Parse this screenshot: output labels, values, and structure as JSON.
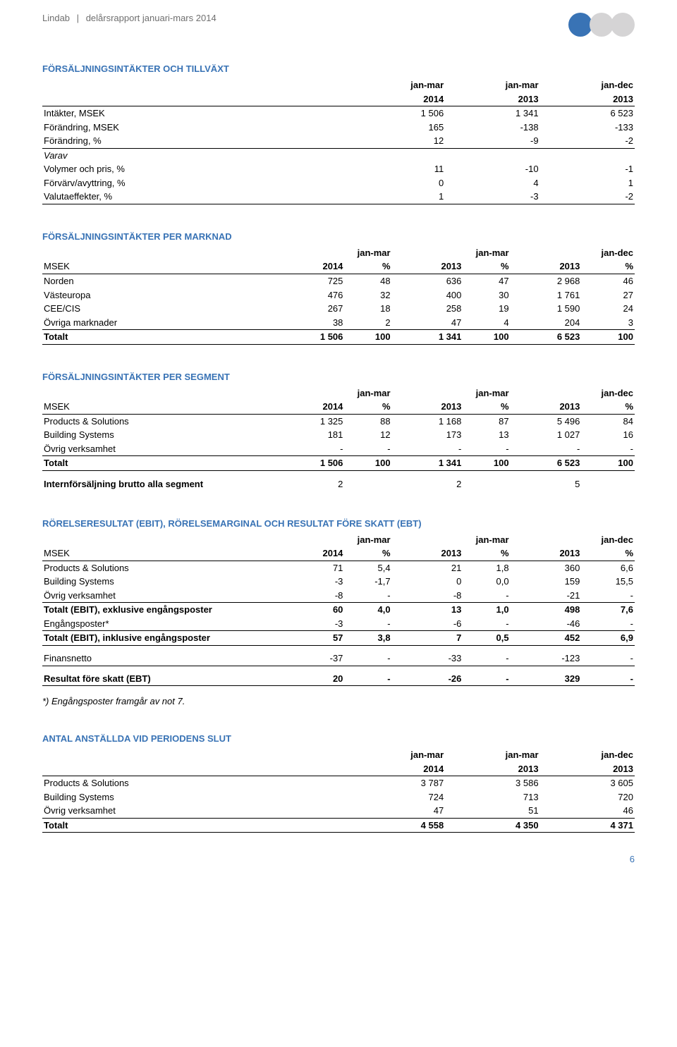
{
  "header": {
    "company": "Lindab",
    "report": "delårsrapport januari-mars 2014"
  },
  "dots": [
    "#3973b5",
    "#d5d4d5",
    "#d5d4d5"
  ],
  "page_number": "6",
  "t1": {
    "title": "FÖRSÄLJNINGSINTÄKTER OCH TILLVÄXT",
    "col_h1": [
      "jan-mar",
      "jan-mar",
      "jan-dec"
    ],
    "col_h2": [
      "2014",
      "2013",
      "2013"
    ],
    "rows": [
      {
        "label": "Intäkter, MSEK",
        "v": [
          "1 506",
          "1 341",
          "6 523"
        ]
      },
      {
        "label": "Förändring, MSEK",
        "v": [
          "165",
          "-138",
          "-133"
        ]
      },
      {
        "label": "Förändring, %",
        "v": [
          "12",
          "-9",
          "-2"
        ]
      }
    ],
    "varav_label": "Varav",
    "varav": [
      {
        "label": "Volymer och pris, %",
        "v": [
          "11",
          "-10",
          "-1"
        ]
      },
      {
        "label": "Förvärv/avyttring, %",
        "v": [
          "0",
          "4",
          "1"
        ]
      },
      {
        "label": "Valutaeffekter, %",
        "v": [
          "1",
          "-3",
          "-2"
        ]
      }
    ]
  },
  "t2": {
    "title": "FÖRSÄLJNINGSINTÄKTER PER MARKNAD",
    "col_h1": [
      "jan-mar",
      "jan-mar",
      "jan-dec"
    ],
    "row_label": "MSEK",
    "col_h2": [
      "2014",
      "%",
      "2013",
      "%",
      "2013",
      "%"
    ],
    "rows": [
      {
        "label": "Norden",
        "v": [
          "725",
          "48",
          "636",
          "47",
          "2 968",
          "46"
        ]
      },
      {
        "label": "Västeuropa",
        "v": [
          "476",
          "32",
          "400",
          "30",
          "1 761",
          "27"
        ]
      },
      {
        "label": "CEE/CIS",
        "v": [
          "267",
          "18",
          "258",
          "19",
          "1 590",
          "24"
        ]
      },
      {
        "label": "Övriga marknader",
        "v": [
          "38",
          "2",
          "47",
          "4",
          "204",
          "3"
        ]
      }
    ],
    "total": {
      "label": "Totalt",
      "v": [
        "1 506",
        "100",
        "1 341",
        "100",
        "6 523",
        "100"
      ]
    }
  },
  "t3": {
    "title": "FÖRSÄLJNINGSINTÄKTER PER SEGMENT",
    "col_h1": [
      "jan-mar",
      "jan-mar",
      "jan-dec"
    ],
    "row_label": "MSEK",
    "col_h2": [
      "2014",
      "%",
      "2013",
      "%",
      "2013",
      "%"
    ],
    "rows": [
      {
        "label": "Products & Solutions",
        "v": [
          "1 325",
          "88",
          "1 168",
          "87",
          "5 496",
          "84"
        ]
      },
      {
        "label": "Building Systems",
        "v": [
          "181",
          "12",
          "173",
          "13",
          "1 027",
          "16"
        ]
      },
      {
        "label": "Övrig verksamhet",
        "v": [
          "-",
          "-",
          "-",
          "-",
          "-",
          "-"
        ]
      }
    ],
    "total": {
      "label": "Totalt",
      "v": [
        "1 506",
        "100",
        "1 341",
        "100",
        "6 523",
        "100"
      ]
    },
    "intern": {
      "label": "Internförsäljning brutto alla segment",
      "v": [
        "2",
        "",
        "2",
        "",
        "5",
        ""
      ]
    }
  },
  "t4": {
    "title": "RÖRELSERESULTAT (EBIT), RÖRELSEMARGINAL OCH RESULTAT FÖRE SKATT (EBT)",
    "col_h1": [
      "jan-mar",
      "jan-mar",
      "jan-dec"
    ],
    "row_label": "MSEK",
    "col_h2": [
      "2014",
      "%",
      "2013",
      "%",
      "2013",
      "%"
    ],
    "rows": [
      {
        "label": "Products & Solutions",
        "v": [
          "71",
          "5,4",
          "21",
          "1,8",
          "360",
          "6,6"
        ]
      },
      {
        "label": "Building Systems",
        "v": [
          "-3",
          "-1,7",
          "0",
          "0,0",
          "159",
          "15,5"
        ]
      },
      {
        "label": "Övrig verksamhet",
        "v": [
          "-8",
          "-",
          "-8",
          "-",
          "-21",
          "-"
        ]
      }
    ],
    "sub1": {
      "label": "Totalt (EBIT), exklusive engångsposter",
      "v": [
        "60",
        "4,0",
        "13",
        "1,0",
        "498",
        "7,6"
      ]
    },
    "row_eng": {
      "label": "Engångsposter*",
      "v": [
        "-3",
        "-",
        "-6",
        "-",
        "-46",
        "-"
      ]
    },
    "sub2": {
      "label": "Totalt (EBIT), inklusive engångsposter",
      "v": [
        "57",
        "3,8",
        "7",
        "0,5",
        "452",
        "6,9"
      ]
    },
    "fin": {
      "label": "Finansnetto",
      "v": [
        "-37",
        "-",
        "-33",
        "-",
        "-123",
        "-"
      ]
    },
    "ebt": {
      "label": "Resultat före skatt (EBT)",
      "v": [
        "20",
        "-",
        "-26",
        "-",
        "329",
        "-"
      ]
    },
    "footnote": "*) Engångsposter framgår av not 7."
  },
  "t5": {
    "title": "ANTAL ANSTÄLLDA VID PERIODENS SLUT",
    "col_h1": [
      "jan-mar",
      "jan-mar",
      "jan-dec"
    ],
    "col_h2": [
      "2014",
      "2013",
      "2013"
    ],
    "rows": [
      {
        "label": "Products & Solutions",
        "v": [
          "3 787",
          "3 586",
          "3 605"
        ]
      },
      {
        "label": "Building Systems",
        "v": [
          "724",
          "713",
          "720"
        ]
      },
      {
        "label": "Övrig verksamhet",
        "v": [
          "47",
          "51",
          "46"
        ]
      }
    ],
    "total": {
      "label": "Totalt",
      "v": [
        "4 558",
        "4 350",
        "4 371"
      ]
    }
  }
}
